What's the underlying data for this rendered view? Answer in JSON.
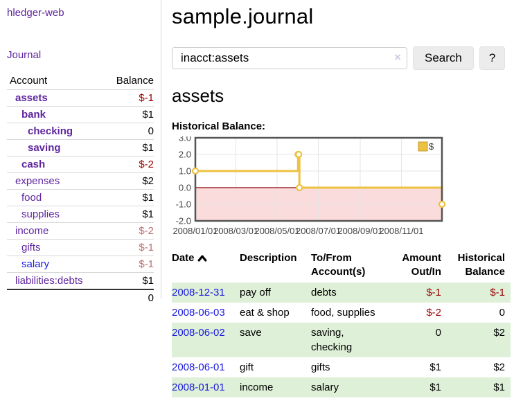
{
  "theme": {
    "link_purple": "#5f259f",
    "link_blue": "#1a1ae0",
    "negative_strong": "#990000",
    "negative_muted": "#bd6d6d",
    "row_stripe_green": "#dff0d8",
    "chart_line_gold": "#EDC240",
    "chart_negative_fill": "#fbdcdc",
    "chart_zero_line": "#8b0000",
    "chart_border": "#545454"
  },
  "sidebar": {
    "brand": "hledger-web",
    "nav": {
      "journal": "Journal"
    },
    "accounts_table": {
      "headers": {
        "account": "Account",
        "balance": "Balance"
      },
      "rows": [
        {
          "name": "assets",
          "balance": "$-1",
          "level": 1,
          "bold": true
        },
        {
          "name": "bank",
          "balance": "$1",
          "level": 2,
          "bold": true
        },
        {
          "name": "checking",
          "balance": "0",
          "level": 3,
          "bold": true
        },
        {
          "name": "saving",
          "balance": "$1",
          "level": 3,
          "bold": true
        },
        {
          "name": "cash",
          "balance": "$-2",
          "level": 2,
          "bold": true
        },
        {
          "name": "expenses",
          "balance": "$2",
          "level": 1,
          "bold": false
        },
        {
          "name": "food",
          "balance": "$1",
          "level": 2,
          "bold": false
        },
        {
          "name": "supplies",
          "balance": "$1",
          "level": 2,
          "bold": false
        },
        {
          "name": "income",
          "balance": "$-2",
          "level": 1,
          "bold": false
        },
        {
          "name": "gifts",
          "balance": "$-1",
          "level": 2,
          "bold": false
        },
        {
          "name": "salary",
          "balance": "$-1",
          "level": 2,
          "bold": false,
          "unvisited": true
        },
        {
          "name": "liabilities:debts",
          "balance": "$1",
          "level": 1,
          "bold": false
        }
      ],
      "total": "0"
    }
  },
  "main": {
    "title": "sample.journal",
    "search": {
      "value": "inacct:assets",
      "clear_icon": "×",
      "button": "Search",
      "help_button": "?"
    },
    "account_heading": "assets",
    "chart_label": "Historical Balance:"
  },
  "chart_data": {
    "type": "line",
    "steps": true,
    "title": "Historical Balance:",
    "series": [
      {
        "name": "$",
        "color": "#EDC240",
        "points": [
          [
            "2008-01-01",
            1
          ],
          [
            "2008-06-01",
            2
          ],
          [
            "2008-06-02",
            2
          ],
          [
            "2008-06-03",
            0
          ],
          [
            "2008-12-31",
            -1
          ]
        ]
      }
    ],
    "xlim": [
      "2008-01-01",
      "2008-12-31"
    ],
    "ylim": [
      -2,
      3
    ],
    "x_ticks": [
      "2008/01/01",
      "2008/03/01",
      "2008/05/01",
      "2008/07/01",
      "2008/09/01",
      "2008/11/01"
    ],
    "y_tick_values": [
      3,
      2,
      1,
      0,
      -1,
      -2
    ],
    "y_tick_labels": [
      "3.0",
      "2.0",
      "1.0",
      "0.0",
      "-1.0",
      "-2.0"
    ],
    "grid": true,
    "legend": {
      "label": "$",
      "position": "top-right"
    },
    "negative_region_fill": "#fbdcdc",
    "zero_line_color": "#8b0000"
  },
  "transactions": {
    "headers": {
      "date": "Date",
      "description": "Description",
      "accounts": "To/From Account(s)",
      "amount": "Amount Out/In",
      "balance": "Historical Balance"
    },
    "rows": [
      {
        "date": "2008-12-31",
        "description": "pay off",
        "accounts": "debts",
        "amount": "$-1",
        "balance": "$-1"
      },
      {
        "date": "2008-06-03",
        "description": "eat & shop",
        "accounts": "food, supplies",
        "amount": "$-2",
        "balance": "0"
      },
      {
        "date": "2008-06-02",
        "description": "save",
        "accounts": "saving, checking",
        "amount": "0",
        "balance": "$2"
      },
      {
        "date": "2008-06-01",
        "description": "gift",
        "accounts": "gifts",
        "amount": "$1",
        "balance": "$2"
      },
      {
        "date": "2008-01-01",
        "description": "income",
        "accounts": "salary",
        "amount": "$1",
        "balance": "$1"
      }
    ]
  }
}
